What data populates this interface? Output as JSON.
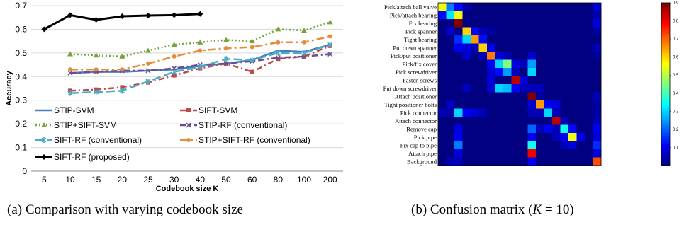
{
  "captions": {
    "a": "(a) Comparison with varying codebook size",
    "b_prefix": "(b) Confusion matrix (",
    "b_var": "K",
    "b_suffix": " = 10)"
  },
  "chart_data": [
    {
      "type": "line",
      "xlabel": "Codebook size K",
      "ylabel": "Accuracy",
      "categories": [
        "5",
        "10",
        "15",
        "20",
        "25",
        "30",
        "40",
        "50",
        "60",
        "80",
        "100",
        "200"
      ],
      "ylim": [
        0,
        0.7
      ],
      "yticks": [
        "0",
        "0.1",
        "0.2",
        "0.3",
        "0.4",
        "0.5",
        "0.6",
        "0.7"
      ],
      "grid": "horizontal",
      "legend_position": "lower-left",
      "series": [
        {
          "name": "STIP-SVM",
          "color": "#4a7ebb",
          "dash": "",
          "marker": "none",
          "values": [
            null,
            0.415,
            0.42,
            0.42,
            0.425,
            0.43,
            0.445,
            0.455,
            0.47,
            0.51,
            0.505,
            0.535
          ]
        },
        {
          "name": "SIFT-SVM",
          "color": "#be4b48",
          "dash": "8,4,2,4",
          "marker": "square",
          "values": [
            null,
            0.34,
            0.345,
            0.355,
            0.375,
            0.405,
            0.435,
            0.455,
            0.42,
            0.475,
            0.485,
            0.53
          ]
        },
        {
          "name": "STIP+SIFT-SVM",
          "color": "#77a33d",
          "dash": "2,3",
          "marker": "triangle",
          "values": [
            null,
            0.495,
            0.49,
            0.485,
            0.51,
            0.535,
            0.545,
            0.555,
            0.55,
            0.6,
            0.595,
            0.63
          ]
        },
        {
          "name": "STIP-RF (conventional)",
          "color": "#6b4d8e",
          "dash": "9,4,2,4",
          "marker": "x",
          "values": [
            null,
            0.415,
            0.42,
            0.425,
            0.425,
            0.435,
            0.45,
            0.455,
            0.465,
            0.48,
            0.485,
            0.495
          ]
        },
        {
          "name": "SIFT-RF (conventional)",
          "color": "#4aacc6",
          "dash": "12,5",
          "marker": "star",
          "values": [
            null,
            0.33,
            0.335,
            0.34,
            0.38,
            0.42,
            0.44,
            0.475,
            0.47,
            0.5,
            0.5,
            0.535
          ]
        },
        {
          "name": "STIP+SIFT-RF (conventional)",
          "color": "#e98c3a",
          "dash": "11,4,3,4",
          "marker": "circle",
          "values": [
            null,
            0.43,
            0.43,
            0.43,
            0.455,
            0.485,
            0.51,
            0.52,
            0.525,
            0.545,
            0.545,
            0.57
          ]
        },
        {
          "name": "SIFT-RF (proposed)",
          "color": "#000000",
          "dash": "",
          "marker": "diamond",
          "values": [
            0.6,
            0.66,
            0.64,
            0.655,
            0.658,
            0.66,
            0.665,
            null,
            null,
            null,
            null,
            null
          ]
        }
      ]
    },
    {
      "type": "heatmap",
      "colormap": "jet",
      "categories": [
        "Pick/attach ball valve",
        "Pick/attach bearing",
        "Fix bearing",
        "Pick spanner",
        "Tight bearing",
        "Put down spanner",
        "Pick/put positioner",
        "Pick/fix cover",
        "Pick screwdriver",
        "Fasten screws",
        "Put down screwdriver",
        "Attach positioner",
        "Tight positioner bolts",
        "Pick connector",
        "Attach connector",
        "Remove cap",
        "Pick pipe",
        "Fix cap to pipe",
        "Attach pipe",
        "Background"
      ],
      "zlim": [
        0,
        0.9
      ],
      "colorbar_ticks": [
        "0.1",
        "0.2",
        "0.3",
        "0.4",
        "0.5",
        "0.6",
        "0.7",
        "0.8",
        "0.9"
      ],
      "matrix": [
        [
          0.55,
          0.22,
          0.12,
          0.03,
          0,
          0,
          0,
          0,
          0,
          0,
          0,
          0,
          0,
          0,
          0,
          0,
          0,
          0,
          0,
          0.08
        ],
        [
          0.12,
          0.32,
          0.55,
          0,
          0,
          0,
          0,
          0,
          0,
          0,
          0,
          0,
          0,
          0,
          0,
          0,
          0,
          0,
          0,
          0.04
        ],
        [
          0,
          0,
          0.92,
          0,
          0,
          0,
          0,
          0,
          0,
          0,
          0,
          0,
          0,
          0,
          0,
          0,
          0,
          0,
          0,
          0.08
        ],
        [
          0,
          0.07,
          0,
          0.6,
          0.12,
          0.05,
          0.03,
          0,
          0,
          0,
          0,
          0,
          0,
          0,
          0,
          0,
          0,
          0,
          0,
          0.03
        ],
        [
          0,
          0,
          0.15,
          0.3,
          0.65,
          0.12,
          0,
          0,
          0,
          0,
          0,
          0,
          0,
          0,
          0,
          0,
          0,
          0,
          0,
          0
        ],
        [
          0,
          0,
          0.1,
          0.08,
          0.05,
          0.6,
          0.1,
          0,
          0,
          0,
          0,
          0,
          0,
          0,
          0,
          0,
          0,
          0,
          0,
          0.05
        ],
        [
          0,
          0,
          0,
          0.07,
          0,
          0.05,
          0.68,
          0.08,
          0.05,
          0,
          0,
          0.07,
          0,
          0,
          0,
          0,
          0,
          0,
          0,
          0.02
        ],
        [
          0,
          0,
          0,
          0,
          0,
          0,
          0.1,
          0.3,
          0.45,
          0.08,
          0.05,
          0.25,
          0,
          0,
          0,
          0,
          0,
          0,
          0,
          0
        ],
        [
          0,
          0,
          0,
          0,
          0,
          0,
          0.07,
          0.12,
          0.25,
          0.05,
          0,
          0.3,
          0,
          0,
          0,
          0,
          0,
          0,
          0,
          0
        ],
        [
          0,
          0,
          0,
          0,
          0,
          0,
          0.08,
          0,
          0,
          0.85,
          0.08,
          0,
          0,
          0,
          0,
          0,
          0,
          0,
          0,
          0
        ],
        [
          0,
          0,
          0,
          0.05,
          0,
          0,
          0.07,
          0.3,
          0.28,
          0.1,
          0.05,
          0.05,
          0.05,
          0,
          0,
          0,
          0,
          0,
          0,
          0
        ],
        [
          0,
          0,
          0,
          0,
          0,
          0,
          0,
          0,
          0,
          0,
          0,
          0.92,
          0.03,
          0,
          0,
          0,
          0,
          0,
          0,
          0.05
        ],
        [
          0,
          0.06,
          0,
          0,
          0,
          0,
          0,
          0,
          0,
          0,
          0,
          0.07,
          0.65,
          0.1,
          0.08,
          0,
          0,
          0,
          0,
          0.03
        ],
        [
          0.05,
          0.03,
          0.3,
          0.1,
          0.08,
          0.05,
          0,
          0,
          0,
          0,
          0,
          0.05,
          0.05,
          0.3,
          0.05,
          0,
          0,
          0,
          0,
          0.03
        ],
        [
          0,
          0,
          0,
          0,
          0,
          0,
          0,
          0,
          0,
          0,
          0,
          0,
          0,
          0,
          0.85,
          0.05,
          0,
          0,
          0,
          0.05
        ],
        [
          0,
          0,
          0.08,
          0,
          0,
          0,
          0,
          0,
          0,
          0,
          0,
          0.2,
          0.05,
          0.1,
          0.05,
          0.35,
          0.12,
          0,
          0,
          0.1
        ],
        [
          0,
          0,
          0.1,
          0,
          0,
          0,
          0,
          0,
          0,
          0,
          0,
          0.1,
          0,
          0,
          0.05,
          0.1,
          0.55,
          0.1,
          0,
          0.08
        ],
        [
          0,
          0,
          0.22,
          0,
          0,
          0,
          0,
          0,
          0,
          0,
          0,
          0.35,
          0,
          0,
          0,
          0.05,
          0.08,
          0,
          0,
          0.15
        ],
        [
          0,
          0,
          0.08,
          0,
          0,
          0,
          0,
          0,
          0,
          0,
          0,
          0.8,
          0,
          0,
          0,
          0,
          0,
          0,
          0,
          0.08
        ],
        [
          0,
          0.05,
          0.05,
          0,
          0,
          0,
          0,
          0,
          0,
          0,
          0,
          0.1,
          0,
          0,
          0,
          0,
          0,
          0,
          0,
          0.72
        ]
      ]
    }
  ]
}
